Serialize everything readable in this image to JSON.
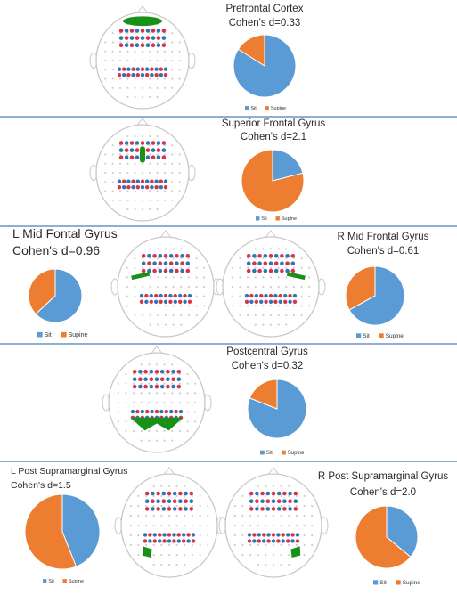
{
  "colors": {
    "sit": "#5b9bd5",
    "supine": "#ed7d31",
    "divider": "#4a7ebb",
    "highlight": "#199119",
    "optode_red": "#d9334a",
    "optode_blue": "#2e75b6",
    "head_outline": "#c8c8c8",
    "grid_dot": "#cfcfcf"
  },
  "legend": {
    "sit": "Sit",
    "supine": "Supine"
  },
  "panels": [
    {
      "title": "Prefrontal Cortex",
      "effect": "Cohen's d=0.33",
      "region": "prefrontal-cortex"
    },
    {
      "title": "Superior Frontal Gyrus",
      "effect": "Cohen's d=2.1",
      "region": "superior-frontal-gyrus"
    },
    {
      "title": "L Mid Fontal Gyrus",
      "effect": "Cohen's d=0.96",
      "region": "left-middle-frontal-gyrus"
    },
    {
      "title": "R Mid Frontal Gyrus",
      "effect": "Cohen's d=0.61",
      "region": "right-middle-frontal-gyrus"
    },
    {
      "title": "Postcentral Gyrus",
      "effect": "Cohen's d=0.32",
      "region": "postcentral-gyrus"
    },
    {
      "title": "L Post Supramarginal Gyrus",
      "effect": "Cohen's d=1.5",
      "region": "left-posterior-supramarginal-gyrus"
    },
    {
      "title": "R Post Supramarginal Gyrus",
      "effect": "Cohen's d=2.0",
      "region": "right-posterior-supramarginal-gyrus"
    }
  ],
  "chart_data": [
    {
      "type": "pie",
      "title": "Prefrontal Cortex",
      "subtitle": "Cohen's d=0.33",
      "categories": [
        "Sit",
        "Supine"
      ],
      "values": [
        0.84,
        0.16
      ]
    },
    {
      "type": "pie",
      "title": "Superior Frontal Gyrus",
      "subtitle": "Cohen's d=2.1",
      "categories": [
        "Sit",
        "Supine"
      ],
      "values": [
        0.21,
        0.79
      ]
    },
    {
      "type": "pie",
      "title": "L Mid Fontal Gyrus",
      "subtitle": "Cohen's d=0.96",
      "categories": [
        "Sit",
        "Supine"
      ],
      "values": [
        0.63,
        0.37
      ]
    },
    {
      "type": "pie",
      "title": "R Mid Frontal Gyrus",
      "subtitle": "Cohen's d=0.61",
      "categories": [
        "Sit",
        "Supine"
      ],
      "values": [
        0.67,
        0.33
      ]
    },
    {
      "type": "pie",
      "title": "Postcentral Gyrus",
      "subtitle": "Cohen's d=0.32",
      "categories": [
        "Sit",
        "Supine"
      ],
      "values": [
        0.81,
        0.19
      ]
    },
    {
      "type": "pie",
      "title": "L Post Supramarginal Gyrus",
      "subtitle": "Cohen's d=1.5",
      "categories": [
        "Sit",
        "Supine"
      ],
      "values": [
        0.44,
        0.56
      ]
    },
    {
      "type": "pie",
      "title": "R Post Supramarginal Gyrus",
      "subtitle": "Cohen's d=2.0",
      "categories": [
        "Sit",
        "Supine"
      ],
      "values": [
        0.36,
        0.64
      ]
    }
  ]
}
